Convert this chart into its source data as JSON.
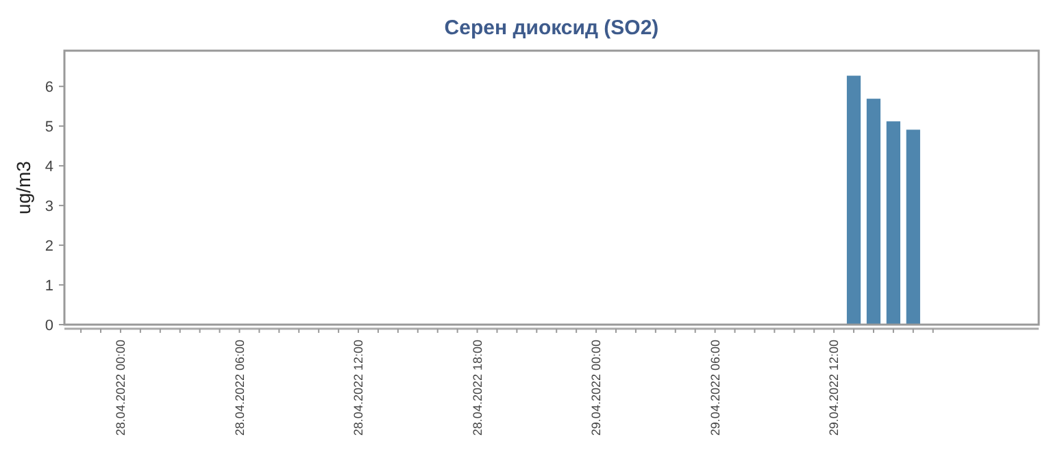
{
  "chart_data": {
    "type": "bar",
    "title": "Серен диоксид (SO2)",
    "ylabel": "ug/m3",
    "x": [
      "2022-04-29T13:00",
      "2022-04-29T14:00",
      "2022-04-29T15:00",
      "2022-04-29T16:00"
    ],
    "values": [
      6.27,
      5.69,
      5.12,
      4.91
    ],
    "color": "#4f86ae",
    "ylim": [
      0,
      6.9
    ],
    "yticks": [
      0,
      1,
      2,
      3,
      4,
      5,
      6
    ],
    "xlim": [
      "2022-04-27T21:10",
      "2022-04-29T22:20"
    ],
    "xticks": [
      {
        "value": "2022-04-27T22:00",
        "label": null
      },
      {
        "value": "2022-04-27T23:00",
        "label": null
      },
      {
        "value": "2022-04-28T00:00",
        "label": "28.04.2022 00:00"
      },
      {
        "value": "2022-04-28T01:00",
        "label": null
      },
      {
        "value": "2022-04-28T02:00",
        "label": null
      },
      {
        "value": "2022-04-28T03:00",
        "label": null
      },
      {
        "value": "2022-04-28T04:00",
        "label": null
      },
      {
        "value": "2022-04-28T05:00",
        "label": null
      },
      {
        "value": "2022-04-28T06:00",
        "label": "28.04.2022 06:00"
      },
      {
        "value": "2022-04-28T07:00",
        "label": null
      },
      {
        "value": "2022-04-28T08:00",
        "label": null
      },
      {
        "value": "2022-04-28T09:00",
        "label": null
      },
      {
        "value": "2022-04-28T10:00",
        "label": null
      },
      {
        "value": "2022-04-28T11:00",
        "label": null
      },
      {
        "value": "2022-04-28T12:00",
        "label": "28.04.2022 12:00"
      },
      {
        "value": "2022-04-28T13:00",
        "label": null
      },
      {
        "value": "2022-04-28T14:00",
        "label": null
      },
      {
        "value": "2022-04-28T15:00",
        "label": null
      },
      {
        "value": "2022-04-28T16:00",
        "label": null
      },
      {
        "value": "2022-04-28T17:00",
        "label": null
      },
      {
        "value": "2022-04-28T18:00",
        "label": "28.04.2022 18:00"
      },
      {
        "value": "2022-04-28T19:00",
        "label": null
      },
      {
        "value": "2022-04-28T20:00",
        "label": null
      },
      {
        "value": "2022-04-28T21:00",
        "label": null
      },
      {
        "value": "2022-04-28T22:00",
        "label": null
      },
      {
        "value": "2022-04-28T23:00",
        "label": null
      },
      {
        "value": "2022-04-29T00:00",
        "label": "29.04.2022 00:00"
      },
      {
        "value": "2022-04-29T01:00",
        "label": null
      },
      {
        "value": "2022-04-29T02:00",
        "label": null
      },
      {
        "value": "2022-04-29T03:00",
        "label": null
      },
      {
        "value": "2022-04-29T04:00",
        "label": null
      },
      {
        "value": "2022-04-29T05:00",
        "label": null
      },
      {
        "value": "2022-04-29T06:00",
        "label": "29.04.2022 06:00"
      },
      {
        "value": "2022-04-29T07:00",
        "label": null
      },
      {
        "value": "2022-04-29T08:00",
        "label": null
      },
      {
        "value": "2022-04-29T09:00",
        "label": null
      },
      {
        "value": "2022-04-29T10:00",
        "label": null
      },
      {
        "value": "2022-04-29T11:00",
        "label": null
      },
      {
        "value": "2022-04-29T12:00",
        "label": "29.04.2022 12:00"
      },
      {
        "value": "2022-04-29T13:00",
        "label": null
      },
      {
        "value": "2022-04-29T14:00",
        "label": null
      },
      {
        "value": "2022-04-29T15:00",
        "label": null
      },
      {
        "value": "2022-04-29T16:00",
        "label": null
      },
      {
        "value": "2022-04-29T17:00",
        "label": null
      }
    ]
  }
}
